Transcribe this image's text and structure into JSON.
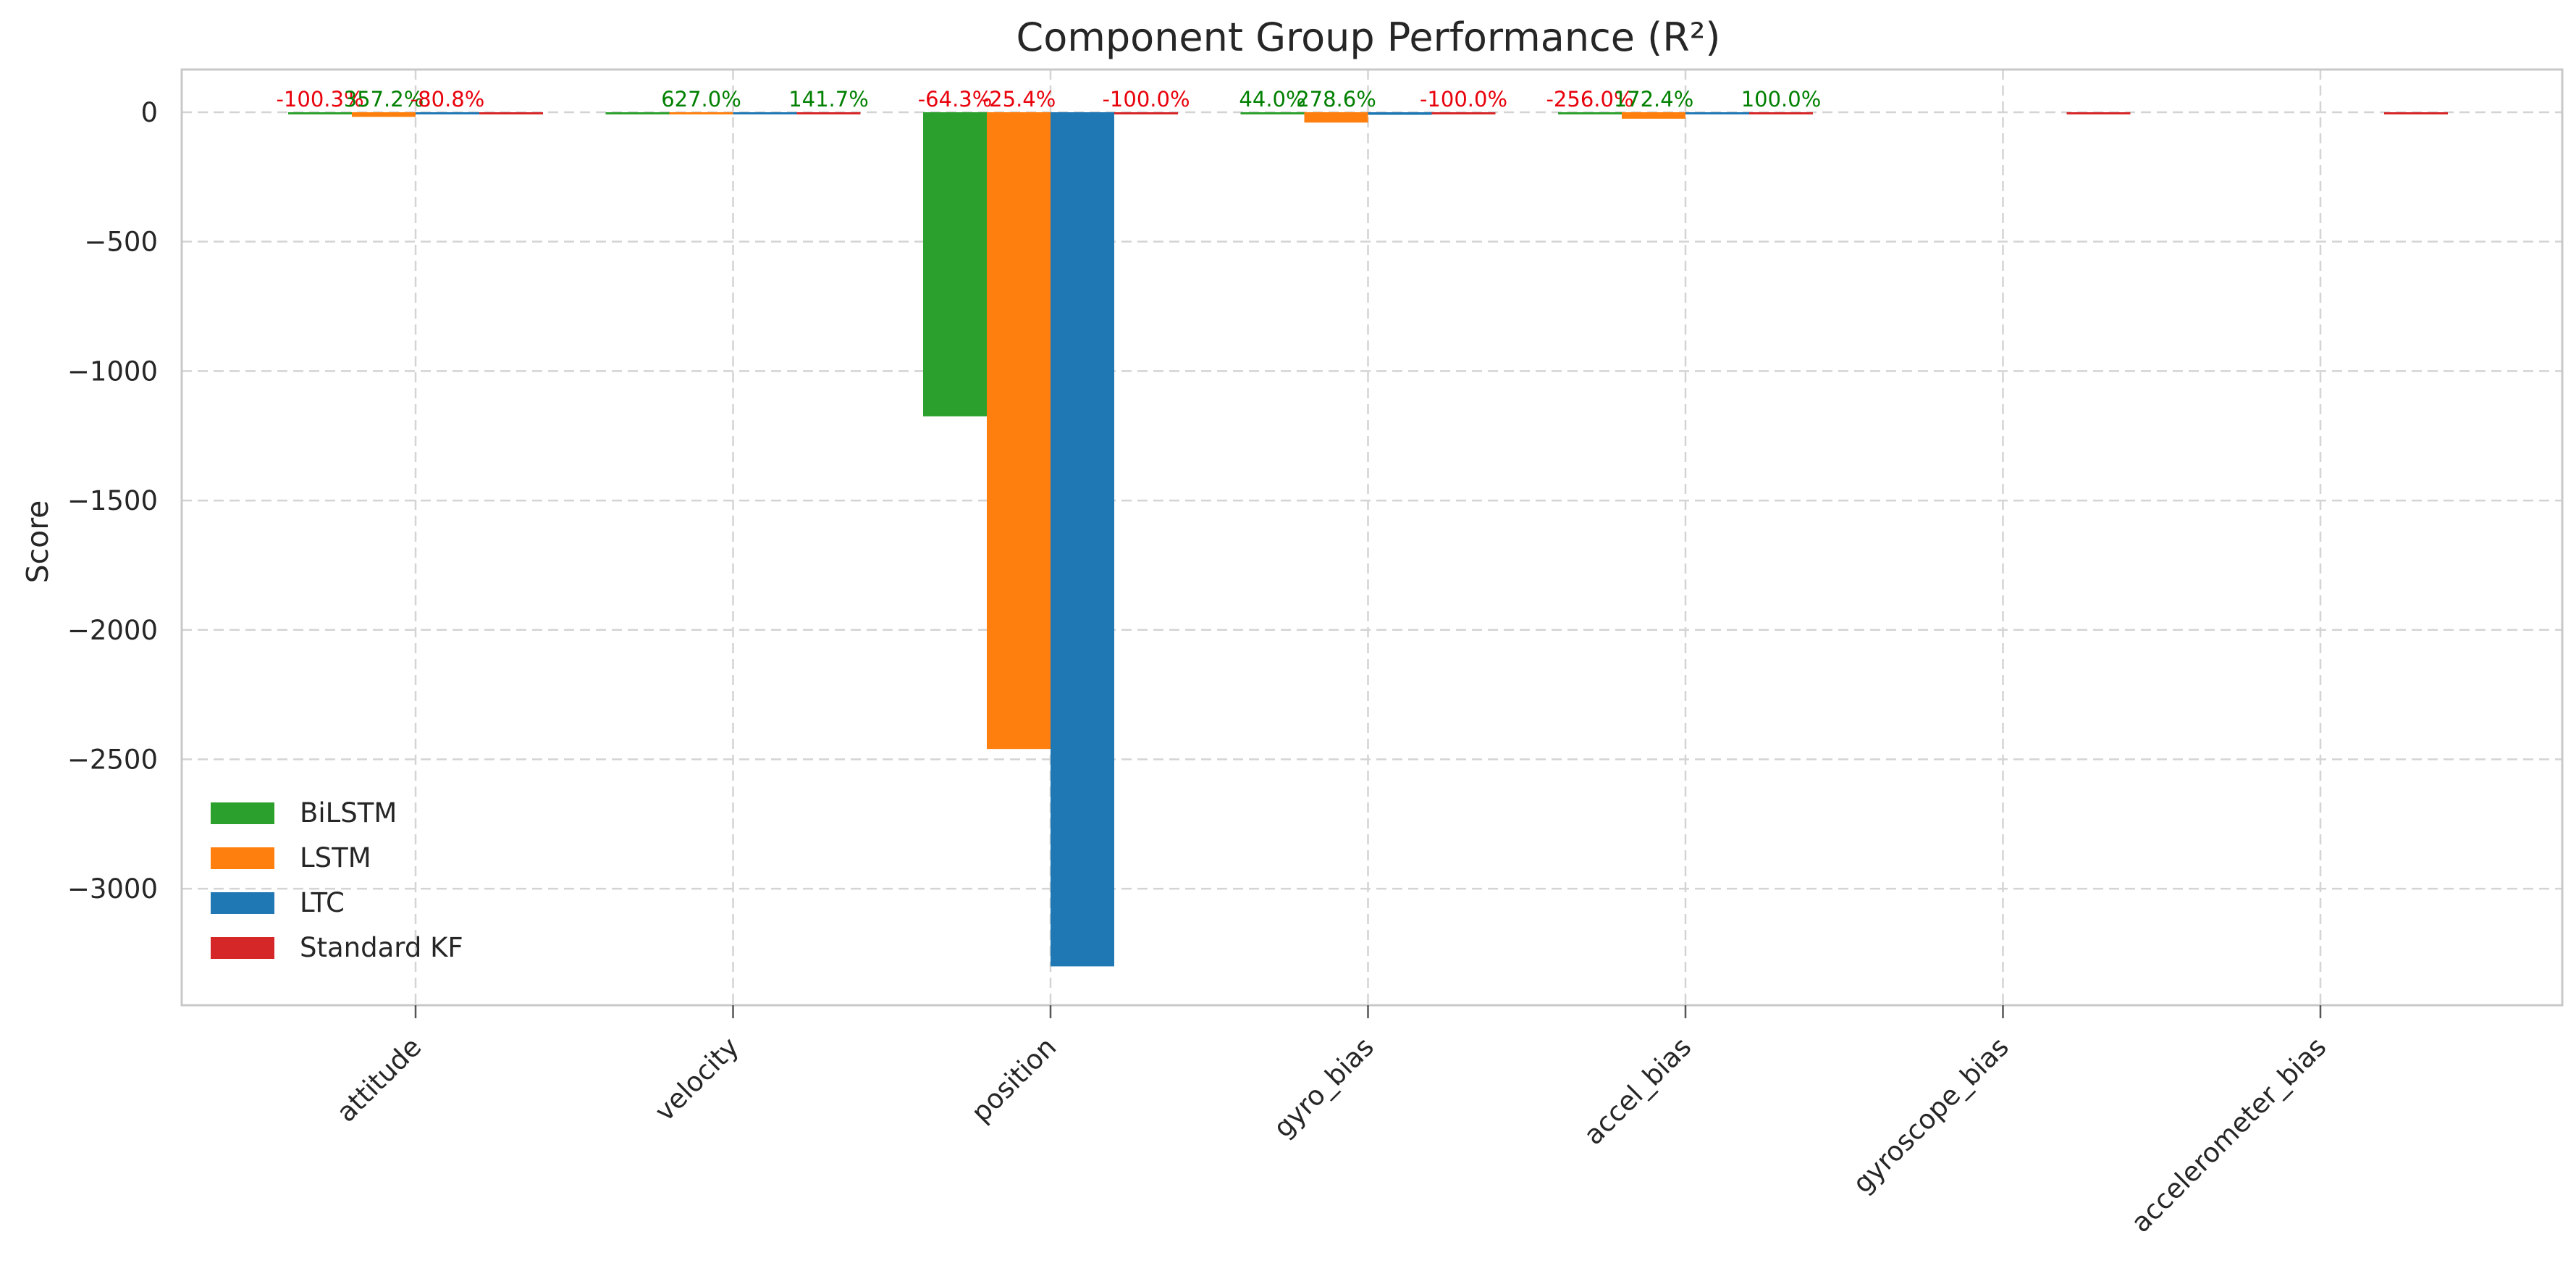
{
  "chart_data": {
    "type": "bar",
    "title": "Component Group Performance (R²)",
    "xlabel": "",
    "ylabel": "Score",
    "ylim": [
      -3450,
      165
    ],
    "yticks": [
      0,
      -500,
      -1000,
      -1500,
      -2000,
      -2500,
      -3000
    ],
    "ytick_labels": [
      "0",
      "−500",
      "−1000",
      "−1500",
      "−2000",
      "−2500",
      "−3000"
    ],
    "grid": true,
    "legend_position": "lower-left",
    "categories": [
      "attitude",
      "velocity",
      "position",
      "gyro_bias",
      "accel_bias",
      "gyroscope_bias",
      "accelerometer_bias"
    ],
    "series": [
      {
        "name": "BiLSTM",
        "color": "#2ca02c",
        "values": [
          0,
          0,
          -1175,
          -8,
          0,
          null,
          null
        ]
      },
      {
        "name": "LSTM",
        "color": "#ff7f0e",
        "values": [
          -18,
          -3,
          -2460,
          -40,
          -25,
          null,
          null
        ]
      },
      {
        "name": "LTC",
        "color": "#1f77b4",
        "values": [
          -3,
          0,
          -3300,
          -10,
          0,
          null,
          null
        ]
      },
      {
        "name": "Standard KF",
        "color": "#d62728",
        "values": [
          0,
          0,
          0,
          0,
          0,
          -2,
          -2
        ]
      }
    ],
    "annotations": [
      {
        "category": "attitude",
        "series": "BiLSTM",
        "text": "-100.3%",
        "color": "#e8000b"
      },
      {
        "category": "attitude",
        "series": "LSTM",
        "text": "357.2%",
        "color": "#008000"
      },
      {
        "category": "attitude",
        "series": "LTC",
        "text": "-80.8%",
        "color": "#e8000b"
      },
      {
        "category": "velocity",
        "series": "LSTM",
        "text": "627.0%",
        "color": "#008000"
      },
      {
        "category": "velocity",
        "series": "Standard KF",
        "text": "141.7%",
        "color": "#008000"
      },
      {
        "category": "position",
        "series": "BiLSTM",
        "text": "-64.3%",
        "color": "#e8000b"
      },
      {
        "category": "position",
        "series": "LSTM",
        "text": "-25.4%",
        "color": "#e8000b"
      },
      {
        "category": "position",
        "series": "Standard KF",
        "text": "-100.0%",
        "color": "#e8000b"
      },
      {
        "category": "gyro_bias",
        "series": "BiLSTM",
        "text": "44.0%",
        "color": "#008000"
      },
      {
        "category": "gyro_bias",
        "series": "LSTM",
        "text": "278.6%",
        "color": "#008000"
      },
      {
        "category": "gyro_bias",
        "series": "Standard KF",
        "text": "-100.0%",
        "color": "#e8000b"
      },
      {
        "category": "accel_bias",
        "series": "BiLSTM",
        "text": "-256.0%",
        "color": "#e8000b"
      },
      {
        "category": "accel_bias",
        "series": "LSTM",
        "text": "172.4%",
        "color": "#008000"
      },
      {
        "category": "accel_bias",
        "series": "Standard KF",
        "text": "100.0%",
        "color": "#008000"
      }
    ]
  }
}
